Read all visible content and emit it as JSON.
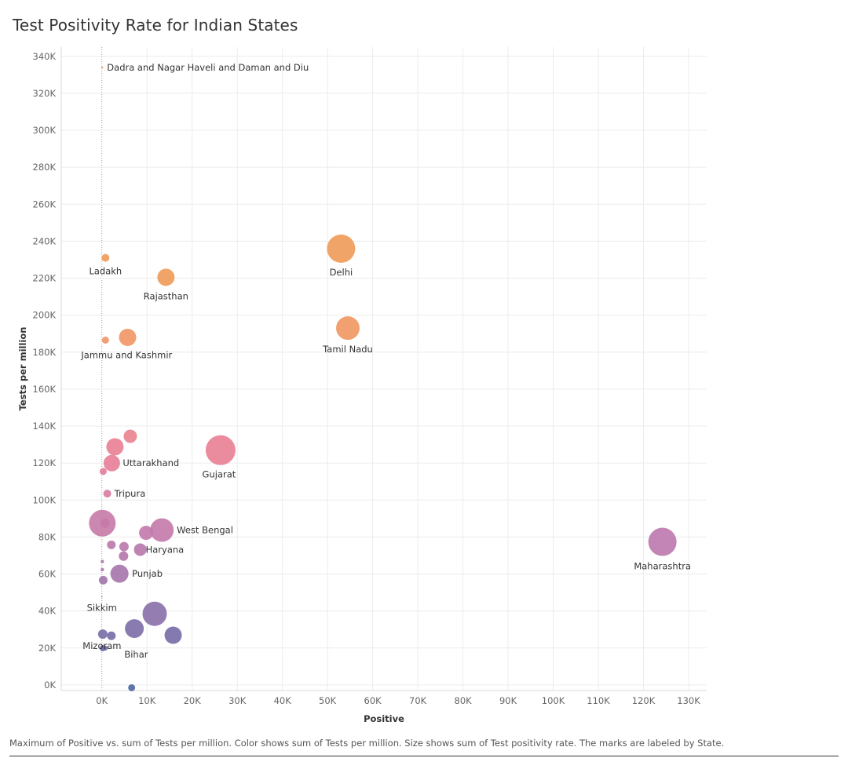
{
  "chart_data": {
    "type": "scatter",
    "title": "Test Positivity Rate for Indian States",
    "xlabel": "Positive",
    "ylabel": "Tests per million",
    "caption": "Maximum of Positive vs. sum of Tests per million.  Color shows sum of Tests per million.  Size shows sum of Test positivity rate.  The marks are labeled by State.",
    "xlim": [
      -9000,
      134000
    ],
    "ylim": [
      -3000,
      345000
    ],
    "x_ticks": [
      0,
      10000,
      20000,
      30000,
      40000,
      50000,
      60000,
      70000,
      80000,
      90000,
      100000,
      110000,
      120000,
      130000
    ],
    "x_tick_labels": [
      "0K",
      "10K",
      "20K",
      "30K",
      "40K",
      "50K",
      "60K",
      "70K",
      "80K",
      "90K",
      "100K",
      "110K",
      "120K",
      "130K"
    ],
    "y_ticks": [
      0,
      20000,
      40000,
      60000,
      80000,
      100000,
      120000,
      140000,
      160000,
      180000,
      200000,
      220000,
      240000,
      260000,
      280000,
      300000,
      320000,
      340000
    ],
    "y_tick_labels": [
      "0K",
      "20K",
      "40K",
      "60K",
      "80K",
      "100K",
      "120K",
      "140K",
      "160K",
      "180K",
      "200K",
      "220K",
      "240K",
      "260K",
      "280K",
      "300K",
      "320K",
      "340K"
    ],
    "grid": true,
    "zero_line": "dotted",
    "color_scale": [
      "#4f67a1",
      "#8a6fa8",
      "#c079ad",
      "#e77d98",
      "#f08a80",
      "#ef9a58"
    ],
    "points": [
      {
        "x": 100,
        "y": 334000,
        "size": 1.2,
        "label": "Dadra and Nagar Haveli and Daman and Diu"
      },
      {
        "x": 800,
        "y": 231000,
        "size": 5,
        "label": "Ladakh"
      },
      {
        "x": 14200,
        "y": 220500,
        "size": 11,
        "label": "Rajasthan"
      },
      {
        "x": 53000,
        "y": 236000,
        "size": 18,
        "label": "Delhi"
      },
      {
        "x": 800,
        "y": 186500,
        "size": 4.5,
        "label": "Jammu and Kashmir"
      },
      {
        "x": 5700,
        "y": 188000,
        "size": 11,
        "label": ""
      },
      {
        "x": 54500,
        "y": 193000,
        "size": 15,
        "label": "Tamil Nadu"
      },
      {
        "x": 6300,
        "y": 134500,
        "size": 8.5,
        "label": ""
      },
      {
        "x": 2900,
        "y": 128800,
        "size": 11,
        "label": ""
      },
      {
        "x": 26300,
        "y": 127000,
        "size": 19,
        "label": "Gujarat"
      },
      {
        "x": 2200,
        "y": 120000,
        "size": 10.5,
        "label": "Uttarakhand"
      },
      {
        "x": 300,
        "y": 115500,
        "size": 4.5,
        "label": ""
      },
      {
        "x": 1200,
        "y": 103500,
        "size": 5,
        "label": "Tripura"
      },
      {
        "x": 100,
        "y": 87500,
        "size": 17,
        "label": ""
      },
      {
        "x": 700,
        "y": 87500,
        "size": 6,
        "label": ""
      },
      {
        "x": 13300,
        "y": 83800,
        "size": 15,
        "label": "West Bengal"
      },
      {
        "x": 9800,
        "y": 82300,
        "size": 9,
        "label": ""
      },
      {
        "x": 2100,
        "y": 75800,
        "size": 5.5,
        "label": ""
      },
      {
        "x": 4900,
        "y": 74800,
        "size": 6,
        "label": ""
      },
      {
        "x": 8500,
        "y": 73200,
        "size": 8,
        "label": "Haryana"
      },
      {
        "x": 124200,
        "y": 77400,
        "size": 18,
        "label": "Maharashtra"
      },
      {
        "x": 4800,
        "y": 69700,
        "size": 6,
        "label": ""
      },
      {
        "x": 100,
        "y": 66800,
        "size": 2.2,
        "label": ""
      },
      {
        "x": 100,
        "y": 62400,
        "size": 2.2,
        "label": ""
      },
      {
        "x": 3900,
        "y": 60200,
        "size": 11.5,
        "label": "Punjab"
      },
      {
        "x": 300,
        "y": 56700,
        "size": 5.5,
        "label": ""
      },
      {
        "x": 0,
        "y": 47700,
        "size": 0.8,
        "label": "Sikkim"
      },
      {
        "x": 11700,
        "y": 38500,
        "size": 15.5,
        "label": ""
      },
      {
        "x": 7200,
        "y": 30500,
        "size": 12,
        "label": ""
      },
      {
        "x": 200,
        "y": 27500,
        "size": 6,
        "label": "Mizoram"
      },
      {
        "x": 2100,
        "y": 26600,
        "size": 5.5,
        "label": ""
      },
      {
        "x": 15800,
        "y": 26900,
        "size": 11,
        "label": ""
      },
      {
        "x": 200,
        "y": 19900,
        "size": 4,
        "label": ""
      },
      {
        "x": 800,
        "y": 19900,
        "size": 3,
        "label": "Bihar"
      },
      {
        "x": 6600,
        "y": -1500,
        "size": 4.5,
        "label": ""
      }
    ]
  }
}
